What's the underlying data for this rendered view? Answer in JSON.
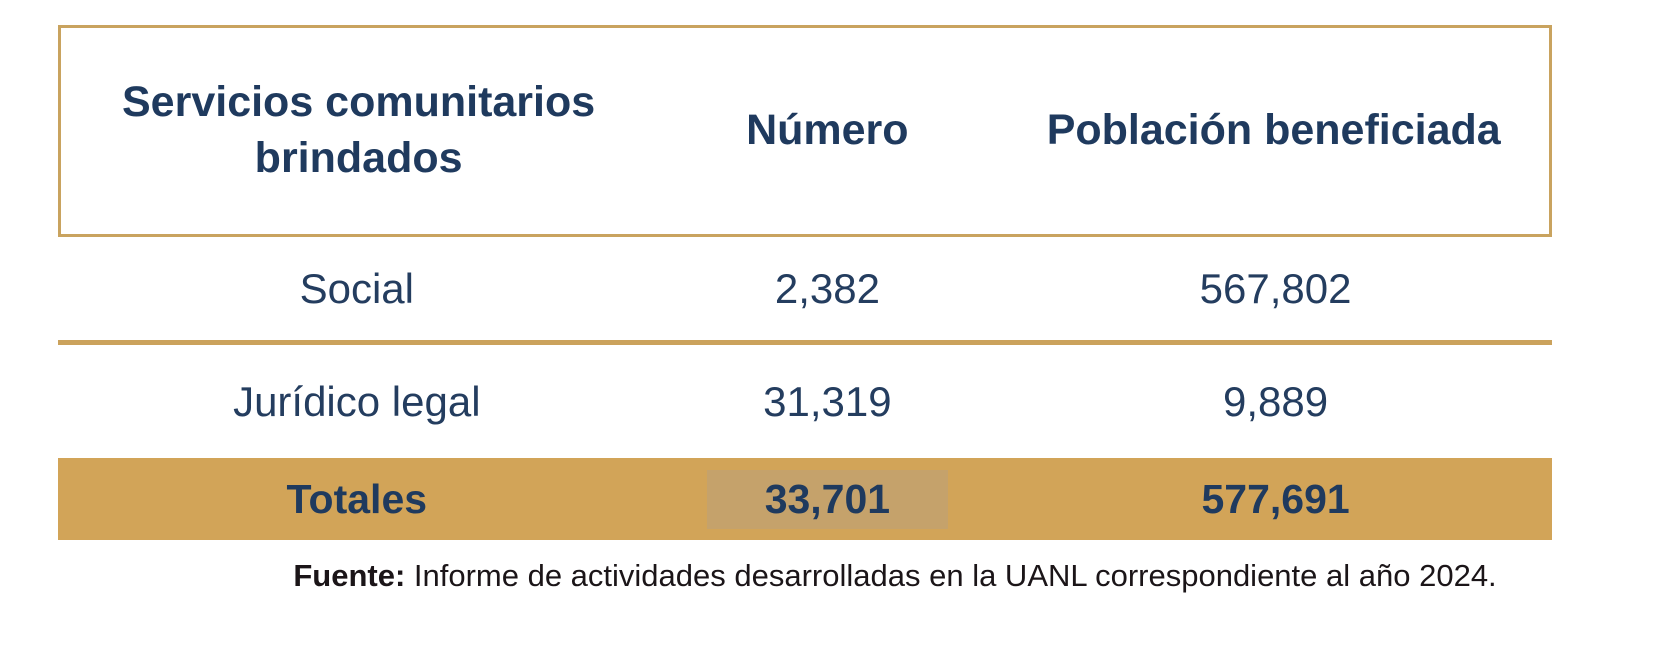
{
  "table": {
    "columns": [
      {
        "label": "Servicios comunitarios brindados"
      },
      {
        "label": "Número"
      },
      {
        "label": "Población beneficiada"
      }
    ],
    "rows": [
      {
        "service": "Social",
        "number": "2,382",
        "population": "567,802"
      },
      {
        "service": "Jurídico legal",
        "number": "31,319",
        "population": "9,889"
      }
    ],
    "totals": {
      "label": "Totales",
      "number": "33,701",
      "population": "577,691"
    }
  },
  "footer": {
    "label": "Fuente:",
    "text": " Informe de actividades desarrolladas en la UANL correspondiente al año 2024."
  },
  "colors": {
    "navy": "#1F3A5E",
    "navy-body": "#243D5F",
    "gold-border": "#C9A35F",
    "gold-divider": "#CBA25C",
    "gold-row": "#D2A458",
    "gold-highlight": "#C5A26B",
    "footer-ink": "#1B1518"
  }
}
